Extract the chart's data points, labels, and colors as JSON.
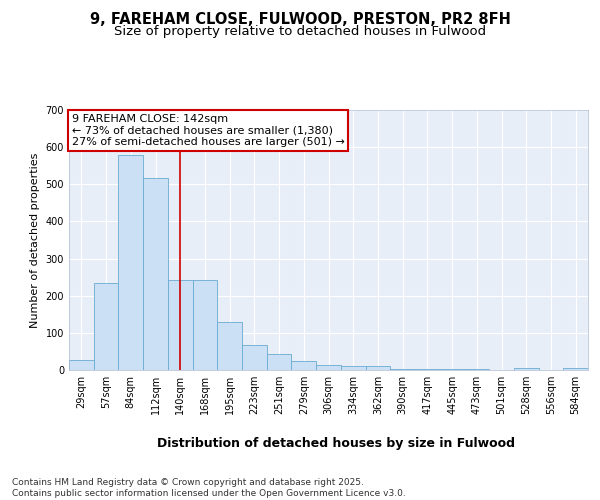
{
  "title": "9, FAREHAM CLOSE, FULWOOD, PRESTON, PR2 8FH",
  "subtitle": "Size of property relative to detached houses in Fulwood",
  "xlabel": "Distribution of detached houses by size in Fulwood",
  "ylabel": "Number of detached properties",
  "categories": [
    "29sqm",
    "57sqm",
    "84sqm",
    "112sqm",
    "140sqm",
    "168sqm",
    "195sqm",
    "223sqm",
    "251sqm",
    "279sqm",
    "306sqm",
    "334sqm",
    "362sqm",
    "390sqm",
    "417sqm",
    "445sqm",
    "473sqm",
    "501sqm",
    "528sqm",
    "556sqm",
    "584sqm"
  ],
  "values": [
    28,
    235,
    580,
    518,
    243,
    243,
    128,
    68,
    42,
    25,
    14,
    10,
    10,
    3,
    3,
    3,
    2,
    0,
    5,
    0,
    5
  ],
  "bar_color": "#cce0f5",
  "bar_edge_color": "#6aabd2",
  "vline_x": 4,
  "vline_color": "#cc0000",
  "annotation_line1": "9 FAREHAM CLOSE: 142sqm",
  "annotation_line2": "← 73% of detached houses are smaller (1,380)",
  "annotation_line3": "27% of semi-detached houses are larger (501) →",
  "annotation_box_color": "#cc0000",
  "ylim": [
    0,
    700
  ],
  "yticks": [
    0,
    100,
    200,
    300,
    400,
    500,
    600,
    700
  ],
  "bg_color": "#ffffff",
  "plot_bg_color": "#e8eef8",
  "grid_color": "#ffffff",
  "footnote": "Contains HM Land Registry data © Crown copyright and database right 2025.\nContains public sector information licensed under the Open Government Licence v3.0.",
  "title_fontsize": 10.5,
  "subtitle_fontsize": 9.5,
  "xlabel_fontsize": 9,
  "ylabel_fontsize": 8,
  "tick_fontsize": 7,
  "annotation_fontsize": 8,
  "footnote_fontsize": 6.5
}
